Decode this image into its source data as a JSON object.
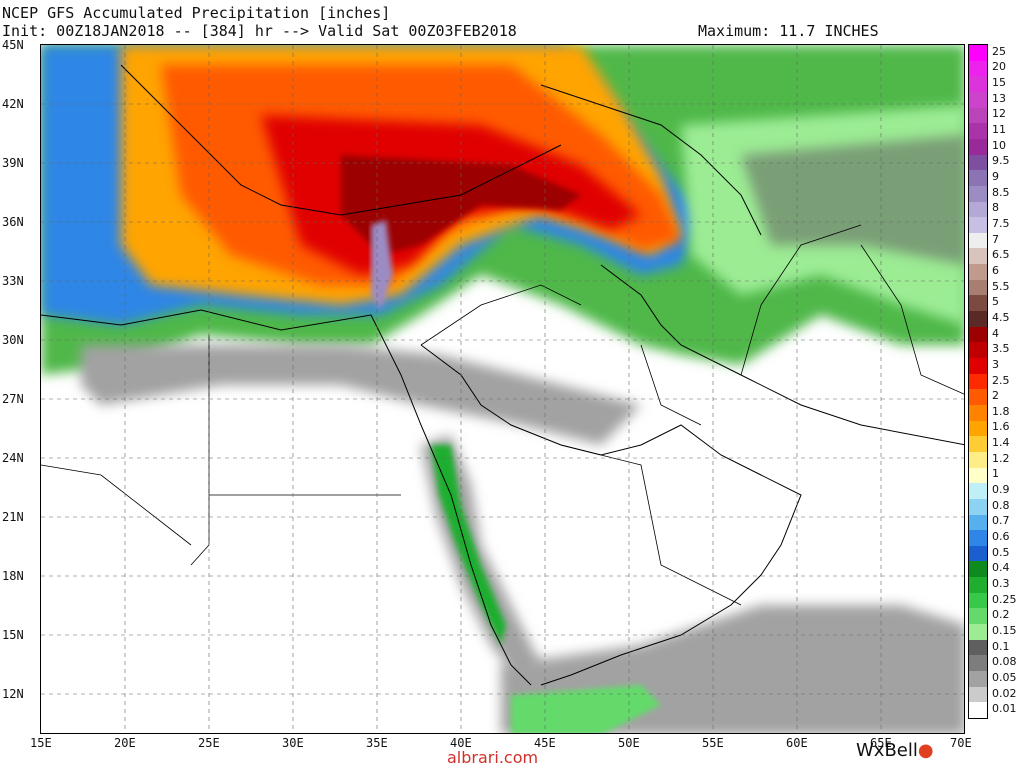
{
  "header": {
    "title": "NCEP GFS Accumulated Precipitation [inches]",
    "init_line": "Init: 00Z18JAN2018 -- [384] hr --> Valid Sat 00Z03FEB2018",
    "maximum": "Maximum: 11.7 INCHES"
  },
  "axes": {
    "lat_labels": [
      "45N",
      "42N",
      "39N",
      "36N",
      "33N",
      "30N",
      "27N",
      "24N",
      "21N",
      "18N",
      "15N",
      "12N"
    ],
    "lon_labels": [
      "15E",
      "20E",
      "25E",
      "30E",
      "35E",
      "40E",
      "45E",
      "50E",
      "55E",
      "60E",
      "65E",
      "70E"
    ],
    "lat_range": [
      10,
      45
    ],
    "lon_range": [
      15,
      70
    ]
  },
  "legend": {
    "labels": [
      "25",
      "20",
      "15",
      "13",
      "12",
      "11",
      "10",
      "9.5",
      "9",
      "8.5",
      "8",
      "7.5",
      "7",
      "6.5",
      "6",
      "5.5",
      "5",
      "4.5",
      "4",
      "3.5",
      "3",
      "2.5",
      "2",
      "1.8",
      "1.6",
      "1.4",
      "1.2",
      "1",
      "0.9",
      "0.8",
      "0.7",
      "0.6",
      "0.5",
      "0.4",
      "0.3",
      "0.25",
      "0.2",
      "0.15",
      "0.1",
      "0.08",
      "0.05",
      "0.02",
      "0.01"
    ],
    "colors": [
      "#ff00ff",
      "#ee22ee",
      "#dd33dd",
      "#cc44cc",
      "#bb44bb",
      "#aa33aa",
      "#992a99",
      "#7e4fa0",
      "#8c74b4",
      "#9c8cc4",
      "#b3a8d6",
      "#c8c0e4",
      "#eeeeee",
      "#d8c4bc",
      "#c09a8c",
      "#a87e72",
      "#7c4a40",
      "#5a2a26",
      "#9c0000",
      "#c00000",
      "#e00000",
      "#ff2a00",
      "#ff5a00",
      "#ff8200",
      "#ffa400",
      "#ffcc33",
      "#ffee88",
      "#ffffc8",
      "#bfeff7",
      "#8cd3f3",
      "#57b0ee",
      "#2f86e6",
      "#1a5ed0",
      "#0f8a1f",
      "#1fae2e",
      "#38c948",
      "#64da6a",
      "#9cec94",
      "#5f5f5f",
      "#7d7d7d",
      "#a2a2a2",
      "#cbcbcb",
      "#ffffff"
    ]
  },
  "branding": {
    "logo": "WxBell",
    "watermark": "albrari.com"
  },
  "map_features": [
    "precipitation-field",
    "coastlines",
    "country-borders",
    "lat-lon-grid"
  ]
}
